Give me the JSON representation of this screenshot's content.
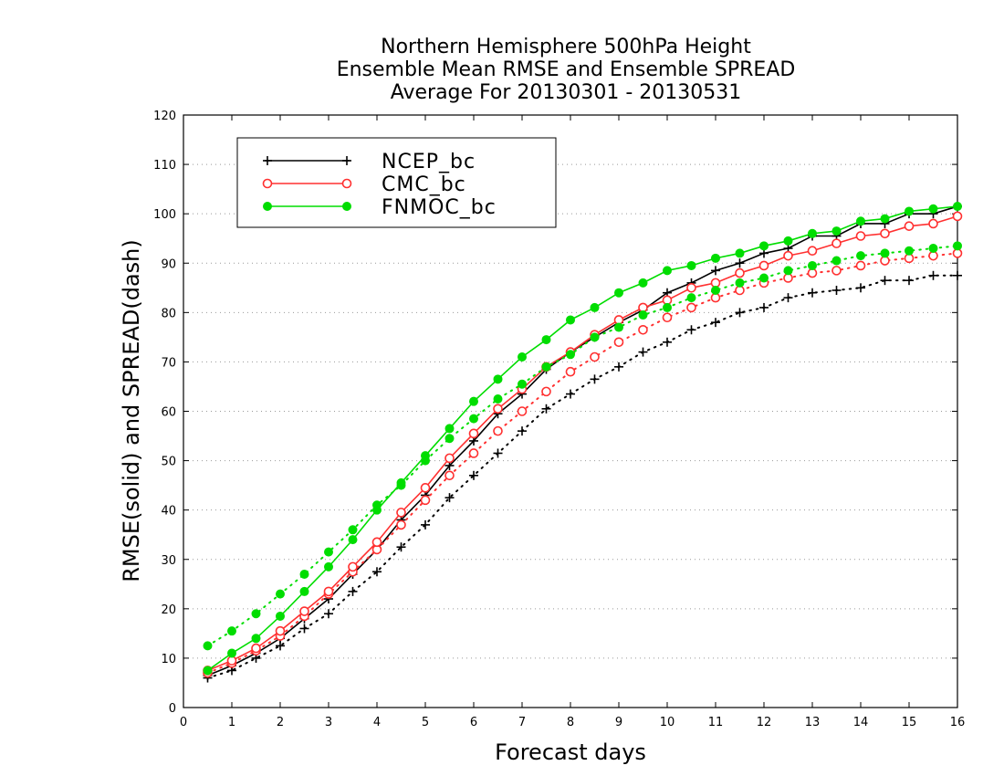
{
  "chart_data": {
    "type": "line",
    "title": [
      "Northern Hemisphere 500hPa Height",
      "Ensemble Mean RMSE and Ensemble SPREAD",
      "Average For 20130301 - 20130531"
    ],
    "xlabel": "Forecast days",
    "ylabel": "RMSE(solid) and SPREAD(dash)",
    "xlim": [
      0,
      16
    ],
    "ylim": [
      0,
      120
    ],
    "xticks": [
      "0",
      "1",
      "2",
      "3",
      "4",
      "5",
      "6",
      "7",
      "8",
      "9",
      "10",
      "11",
      "12",
      "13",
      "14",
      "15",
      "16"
    ],
    "yticks": [
      "0",
      "10",
      "20",
      "30",
      "40",
      "50",
      "60",
      "70",
      "80",
      "90",
      "100",
      "110",
      "120"
    ],
    "grid": "horizontal-dotted",
    "legend_position": "top-left",
    "x": [
      0.5,
      1,
      1.5,
      2,
      2.5,
      3,
      3.5,
      4,
      4.5,
      5,
      5.5,
      6,
      6.5,
      7,
      7.5,
      8,
      8.5,
      9,
      9.5,
      10,
      10.5,
      11,
      11.5,
      12,
      12.5,
      13,
      13.5,
      14,
      14.5,
      15,
      15.5,
      16
    ],
    "series": [
      {
        "name": "NCEP_bc",
        "color": "#000000",
        "marker": "plus",
        "rmse": [
          6.5,
          8.5,
          11,
          14,
          18,
          22,
          27,
          32,
          38,
          43,
          49,
          54,
          59.5,
          63.5,
          68.5,
          72,
          75,
          78,
          80.5,
          84,
          86,
          88.5,
          90,
          92,
          93,
          95.5,
          95.5,
          98,
          98,
          100,
          100,
          101.5
        ],
        "spread": [
          6,
          7.5,
          10,
          12.5,
          16,
          19,
          23.5,
          27.5,
          32.5,
          37,
          42.5,
          47,
          51.5,
          56,
          60.5,
          63.5,
          66.5,
          69,
          72,
          74,
          76.5,
          78,
          80,
          81,
          83,
          84,
          84.5,
          85,
          86.5,
          86.5,
          87.5,
          87.5
        ]
      },
      {
        "name": "CMC_bc",
        "color": "#ff3030",
        "marker": "open-circle",
        "rmse": [
          7.5,
          9.5,
          12,
          15.5,
          19.5,
          23.5,
          28.5,
          33.5,
          39.5,
          44.5,
          50.5,
          55.5,
          60.5,
          64.5,
          69,
          72,
          75.5,
          78.5,
          81,
          82.5,
          85,
          86,
          88,
          89.5,
          91.5,
          92.5,
          94,
          95.5,
          96,
          97.5,
          98,
          99.5
        ],
        "spread": [
          7,
          9,
          11.5,
          14.5,
          18.5,
          23,
          27.5,
          32,
          37,
          42,
          47,
          51.5,
          56,
          60,
          64,
          68,
          71,
          74,
          76.5,
          79,
          81,
          83,
          84.5,
          86,
          87,
          88,
          88.5,
          89.5,
          90.5,
          91,
          91.5,
          92
        ]
      },
      {
        "name": "FNMOC_bc",
        "color": "#00dd00",
        "marker": "filled-circle",
        "rmse": [
          7.5,
          11,
          14,
          18.5,
          23.5,
          28.5,
          34,
          40,
          45.5,
          51,
          56.5,
          62,
          66.5,
          71,
          74.5,
          78.5,
          81,
          84,
          86,
          88.5,
          89.5,
          91,
          92,
          93.5,
          94.5,
          96,
          96.5,
          98.5,
          99,
          100.5,
          101,
          101.5
        ],
        "spread": [
          12.5,
          15.5,
          19,
          23,
          27,
          31.5,
          36,
          41,
          45,
          50,
          54.5,
          58.5,
          62.5,
          65.5,
          69,
          71.5,
          75,
          77,
          79.5,
          81,
          83,
          84.5,
          86,
          87,
          88.5,
          89.5,
          90.5,
          91.5,
          92,
          92.5,
          93,
          93.5
        ]
      }
    ]
  }
}
